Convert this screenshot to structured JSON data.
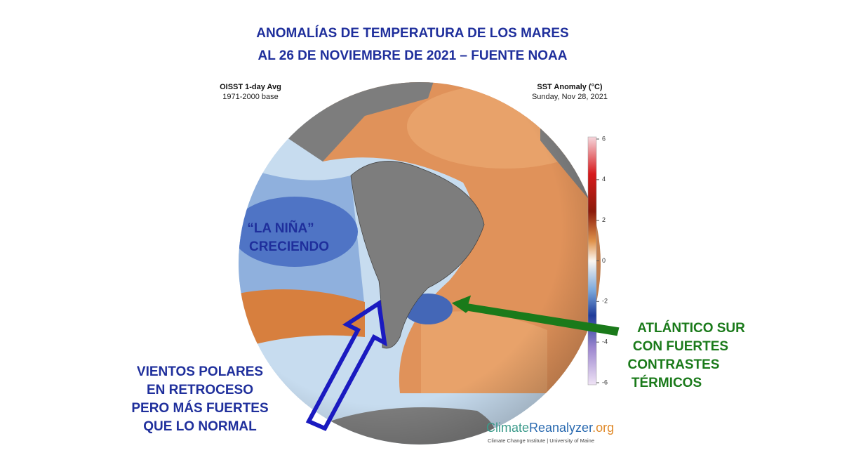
{
  "title": [
    "ANOMALÍAS DE TEMPERATURA DE LOS MARES",
    "AL 26 DE NOVIEMBRE DE 2021 – FUENTE NOAA"
  ],
  "header_left": {
    "title": "OISST 1-day Avg",
    "subtitle": "1971-2000 base"
  },
  "header_right": {
    "title": "SST Anomaly (°C)",
    "subtitle": "Sunday, Nov 28, 2021"
  },
  "colorbar": {
    "ticks": [
      6,
      4,
      2,
      0,
      -2,
      -4,
      -6
    ]
  },
  "annotations": {
    "la_nina": [
      "“LA NIÑA”",
      "CRECIENDO"
    ],
    "vientos": [
      "VIENTOS POLARES",
      "EN RETROCESO",
      "PERO MÁS FUERTES",
      "QUE LO NORMAL"
    ],
    "atlantico": [
      "ATLÁNTICO SUR",
      "CON FUERTES",
      "CONTRASTES",
      "TÉRMICOS"
    ]
  },
  "credit": {
    "brand": [
      "Climate",
      "Reanalyzer",
      ".org"
    ],
    "subtitle": "Climate Change Institute | University of Maine"
  }
}
